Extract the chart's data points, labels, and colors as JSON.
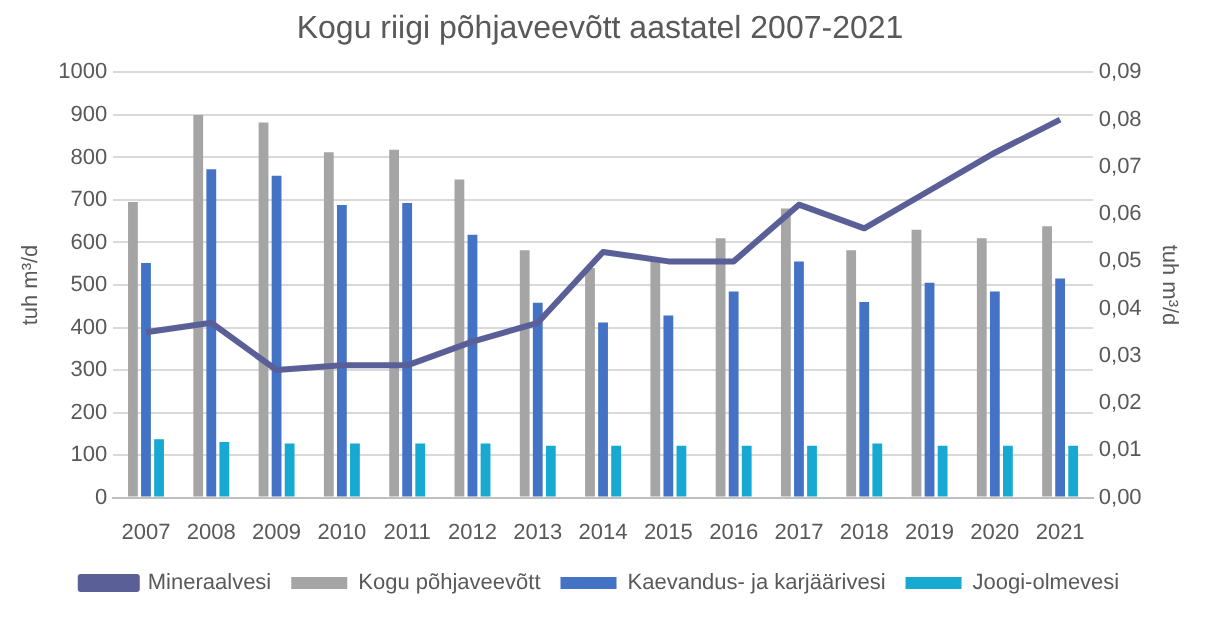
{
  "chart_data": {
    "type": "bar",
    "title": "Kogu riigi põhjaveevõtt aastatel 2007-2021",
    "ylabel": "tuh m³/d",
    "y2label": "tuh m³/d",
    "categories": [
      "2007",
      "2008",
      "2009",
      "2010",
      "2011",
      "2012",
      "2013",
      "2014",
      "2015",
      "2016",
      "2017",
      "2018",
      "2019",
      "2020",
      "2021"
    ],
    "series": [
      {
        "name": "Kogu põhjaveevõtt",
        "color": "#a5a5a5",
        "values": [
          695,
          900,
          882,
          812,
          818,
          748,
          582,
          540,
          560,
          610,
          680,
          582,
          630,
          610,
          638
        ]
      },
      {
        "name": "Kaevandus- ja karjäärivesi",
        "color": "#4472c4",
        "values": [
          552,
          772,
          757,
          688,
          693,
          618,
          458,
          412,
          428,
          485,
          555,
          460,
          505,
          485,
          515
        ]
      },
      {
        "name": "Joogi-olmevesi",
        "color": "#17a9d1",
        "values": [
          137,
          131,
          127,
          127,
          127,
          127,
          122,
          122,
          122,
          122,
          122,
          127,
          122,
          122,
          122
        ]
      },
      {
        "name": "Mineraalvesi",
        "type": "line",
        "axis": "y2",
        "color": "#5b5f97",
        "marker": "none",
        "values": [
          0.035,
          0.037,
          0.027,
          0.028,
          0.028,
          0.033,
          0.037,
          0.052,
          0.05,
          0.05,
          0.062,
          0.057,
          0.065,
          0.073,
          0.08
        ]
      }
    ],
    "ylim": [
      0,
      1000
    ],
    "yticks": [
      0,
      100,
      200,
      300,
      400,
      500,
      600,
      700,
      800,
      900,
      1000
    ],
    "y2lim": [
      0,
      0.09
    ],
    "y2ticks": [
      {
        "value": 0,
        "label": "0,00"
      },
      {
        "value": 0.01,
        "label": "0,01"
      },
      {
        "value": 0.02,
        "label": "0,02"
      },
      {
        "value": 0.03,
        "label": "0,03"
      },
      {
        "value": 0.04,
        "label": "0,04"
      },
      {
        "value": 0.05,
        "label": "0,05"
      },
      {
        "value": 0.06,
        "label": "0,06"
      },
      {
        "value": 0.07,
        "label": "0,07"
      },
      {
        "value": 0.08,
        "label": "0,08"
      },
      {
        "value": 0.09,
        "label": "0,09"
      }
    ],
    "grid": "y",
    "legend": "bottom"
  }
}
